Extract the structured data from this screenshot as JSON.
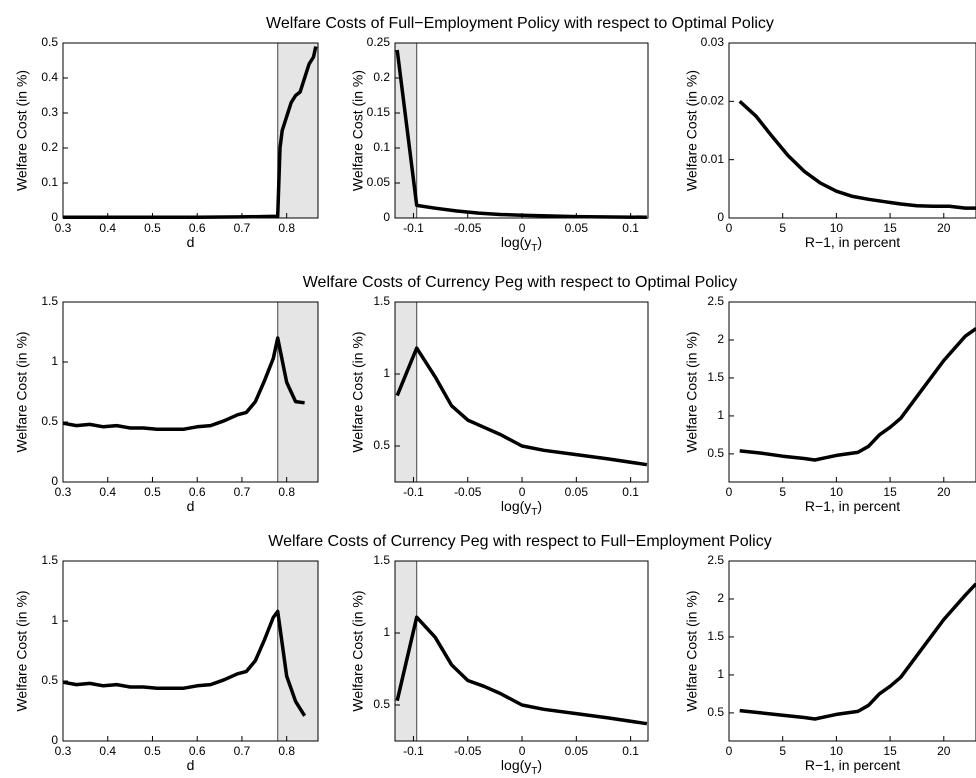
{
  "chart_data": [
    {
      "type": "line",
      "title": "Welfare Costs of Full−Employment Policy with respect to Optimal Policy",
      "xlabel": [
        "d"
      ],
      "ylabel": "Welfare Cost (in %)",
      "color": "#000000",
      "x": [
        0.3,
        0.4,
        0.5,
        0.6,
        0.7,
        0.78,
        0.785,
        0.79,
        0.8,
        0.81,
        0.82,
        0.83,
        0.84,
        0.85,
        0.86,
        0.865
      ],
      "y": [
        0.002,
        0.002,
        0.002,
        0.002,
        0.003,
        0.005,
        0.2,
        0.25,
        0.29,
        0.33,
        0.35,
        0.36,
        0.4,
        0.44,
        0.46,
        0.49
      ],
      "xlim": [
        0.3,
        0.87
      ],
      "ylim": [
        0,
        0.5
      ],
      "xticks": [
        0.3,
        0.4,
        0.5,
        0.6,
        0.7,
        0.8
      ],
      "yticks": [
        0,
        0.1,
        0.2,
        0.3,
        0.4,
        0.5
      ],
      "shaded_region": [
        0.78,
        0.87
      ]
    },
    {
      "type": "line",
      "xlabel": [
        "log(y",
        "T",
        ")"
      ],
      "ylabel": "Welfare Cost (in %)",
      "color": "#000000",
      "x": [
        -0.115,
        -0.097,
        -0.08,
        -0.06,
        -0.04,
        -0.02,
        0,
        0.05,
        0.115
      ],
      "y": [
        0.24,
        0.018,
        0.014,
        0.01,
        0.007,
        0.005,
        0.004,
        0.002,
        0.001
      ],
      "xlim": [
        -0.117,
        0.116
      ],
      "ylim": [
        0,
        0.25
      ],
      "xticks": [
        -0.1,
        -0.05,
        0,
        0.05,
        0.1
      ],
      "yticks": [
        0,
        0.05,
        0.1,
        0.15,
        0.2,
        0.25
      ],
      "shaded_region": [
        -0.117,
        -0.097
      ]
    },
    {
      "type": "line",
      "xlabel": [
        "R−1, in percent"
      ],
      "ylabel": "Welfare Cost (in %)",
      "color": "#000000",
      "x": [
        1,
        2.5,
        4,
        5.5,
        7,
        8.5,
        10,
        11.5,
        13,
        14.5,
        16,
        17.5,
        19,
        20.5,
        22,
        23
      ],
      "y": [
        0.02,
        0.0175,
        0.014,
        0.0107,
        0.008,
        0.006,
        0.0046,
        0.0037,
        0.0032,
        0.0028,
        0.0024,
        0.0021,
        0.002,
        0.002,
        0.0017,
        0.0017
      ],
      "xlim": [
        0,
        23
      ],
      "ylim": [
        0,
        0.03
      ],
      "xticks": [
        0,
        5,
        10,
        15,
        20
      ],
      "yticks": [
        0,
        0.01,
        0.02,
        0.03
      ]
    },
    {
      "type": "line",
      "title": "Welfare Costs of Currency Peg with respect to Optimal Policy",
      "xlabel": [
        "d"
      ],
      "ylabel": "Welfare Cost (in %)",
      "color": "#000000",
      "x": [
        0.3,
        0.33,
        0.36,
        0.39,
        0.42,
        0.45,
        0.48,
        0.51,
        0.54,
        0.57,
        0.6,
        0.63,
        0.66,
        0.69,
        0.71,
        0.73,
        0.75,
        0.77,
        0.78,
        0.8,
        0.82,
        0.84
      ],
      "y": [
        0.49,
        0.47,
        0.48,
        0.46,
        0.47,
        0.45,
        0.45,
        0.44,
        0.44,
        0.44,
        0.46,
        0.47,
        0.51,
        0.56,
        0.58,
        0.67,
        0.84,
        1.03,
        1.2,
        0.83,
        0.67,
        0.66
      ],
      "xlim": [
        0.3,
        0.87
      ],
      "ylim": [
        0,
        1.5
      ],
      "xticks": [
        0.3,
        0.4,
        0.5,
        0.6,
        0.7,
        0.8
      ],
      "yticks": [
        0,
        0.5,
        1,
        1.5
      ],
      "shaded_region": [
        0.78,
        0.87
      ]
    },
    {
      "type": "line",
      "xlabel": [
        "log(y",
        "T",
        ")"
      ],
      "ylabel": "Welfare Cost (in %)",
      "color": "#000000",
      "x": [
        -0.115,
        -0.097,
        -0.08,
        -0.065,
        -0.05,
        -0.035,
        -0.02,
        0,
        0.02,
        0.05,
        0.08,
        0.115
      ],
      "y": [
        0.85,
        1.18,
        0.98,
        0.78,
        0.68,
        0.63,
        0.58,
        0.5,
        0.47,
        0.44,
        0.41,
        0.37
      ],
      "xlim": [
        -0.117,
        0.116
      ],
      "ylim": [
        0.25,
        1.5
      ],
      "xticks": [
        -0.1,
        -0.05,
        0,
        0.05,
        0.1
      ],
      "yticks": [
        0.5,
        1,
        1.5
      ],
      "shaded_region": [
        -0.117,
        -0.097
      ]
    },
    {
      "type": "line",
      "xlabel": [
        "R−1, in percent"
      ],
      "ylabel": "Welfare Cost (in %)",
      "color": "#000000",
      "x": [
        1,
        3,
        5,
        7,
        8,
        9,
        10,
        11,
        12,
        13,
        14,
        15,
        16,
        18,
        20,
        22,
        23
      ],
      "y": [
        0.54,
        0.51,
        0.47,
        0.44,
        0.42,
        0.45,
        0.48,
        0.5,
        0.52,
        0.6,
        0.75,
        0.85,
        0.97,
        1.35,
        1.73,
        2.05,
        2.15
      ],
      "xlim": [
        0,
        23
      ],
      "ylim": [
        0.13,
        2.5
      ],
      "xticks": [
        0,
        5,
        10,
        15,
        20
      ],
      "yticks": [
        0.5,
        1,
        1.5,
        2,
        2.5
      ]
    },
    {
      "type": "line",
      "title": "Welfare Costs of Currency Peg with respect to Full−Employment Policy",
      "xlabel": [
        "d"
      ],
      "ylabel": "Welfare Cost (in %)",
      "color": "#000000",
      "x": [
        0.3,
        0.33,
        0.36,
        0.39,
        0.42,
        0.45,
        0.48,
        0.51,
        0.54,
        0.57,
        0.6,
        0.63,
        0.66,
        0.69,
        0.71,
        0.73,
        0.75,
        0.77,
        0.78,
        0.8,
        0.82,
        0.84
      ],
      "y": [
        0.49,
        0.47,
        0.48,
        0.46,
        0.47,
        0.45,
        0.45,
        0.44,
        0.44,
        0.44,
        0.46,
        0.47,
        0.51,
        0.56,
        0.58,
        0.67,
        0.84,
        1.03,
        1.08,
        0.54,
        0.33,
        0.21
      ],
      "xlim": [
        0.3,
        0.87
      ],
      "ylim": [
        0,
        1.5
      ],
      "xticks": [
        0.3,
        0.4,
        0.5,
        0.6,
        0.7,
        0.8
      ],
      "yticks": [
        0,
        0.5,
        1,
        1.5
      ],
      "shaded_region": [
        0.78,
        0.87
      ]
    },
    {
      "type": "line",
      "xlabel": [
        "log(y",
        "T",
        ")"
      ],
      "ylabel": "Welfare Cost (in %)",
      "color": "#000000",
      "x": [
        -0.115,
        -0.097,
        -0.08,
        -0.065,
        -0.05,
        -0.035,
        -0.02,
        0,
        0.02,
        0.05,
        0.08,
        0.115
      ],
      "y": [
        0.53,
        1.11,
        0.97,
        0.78,
        0.67,
        0.63,
        0.58,
        0.5,
        0.47,
        0.44,
        0.41,
        0.37
      ],
      "xlim": [
        -0.117,
        0.116
      ],
      "ylim": [
        0.25,
        1.5
      ],
      "xticks": [
        -0.1,
        -0.05,
        0,
        0.05,
        0.1
      ],
      "yticks": [
        0.5,
        1,
        1.5
      ],
      "shaded_region": [
        -0.117,
        -0.097
      ]
    },
    {
      "type": "line",
      "xlabel": [
        "R−1, in percent"
      ],
      "ylabel": "Welfare Cost (in %)",
      "color": "#000000",
      "x": [
        1,
        3,
        5,
        7,
        8,
        9,
        10,
        11,
        12,
        13,
        14,
        15,
        16,
        18,
        20,
        22,
        23
      ],
      "y": [
        0.53,
        0.5,
        0.47,
        0.44,
        0.42,
        0.45,
        0.48,
        0.5,
        0.52,
        0.6,
        0.75,
        0.85,
        0.97,
        1.35,
        1.73,
        2.05,
        2.2
      ],
      "xlim": [
        0,
        23
      ],
      "ylim": [
        0.13,
        2.5
      ],
      "xticks": [
        0,
        5,
        10,
        15,
        20
      ],
      "yticks": [
        0.5,
        1,
        1.5,
        2,
        2.5
      ]
    }
  ]
}
